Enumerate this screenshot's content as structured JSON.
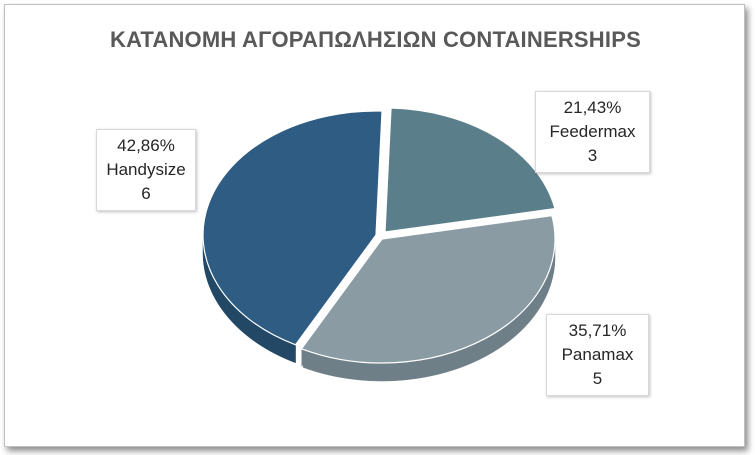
{
  "chart_data": {
    "type": "pie",
    "title": "ΚΑΤΑΝΟΜΗ ΑΓΟΡΑΠΩΛΗΣΙΩΝ CONTAINERSHIPS",
    "slices": [
      {
        "name": "Feedermax",
        "value": 3,
        "percent": "21,43%",
        "color": "#5a7f8a",
        "side": "#45636c"
      },
      {
        "name": "Panamax",
        "value": 5,
        "percent": "35,71%",
        "color": "#8a9ba3",
        "side": "#6f7f87"
      },
      {
        "name": "Handysize",
        "value": 6,
        "percent": "42,86%",
        "color": "#2e5c82",
        "side": "#234865"
      }
    ]
  }
}
